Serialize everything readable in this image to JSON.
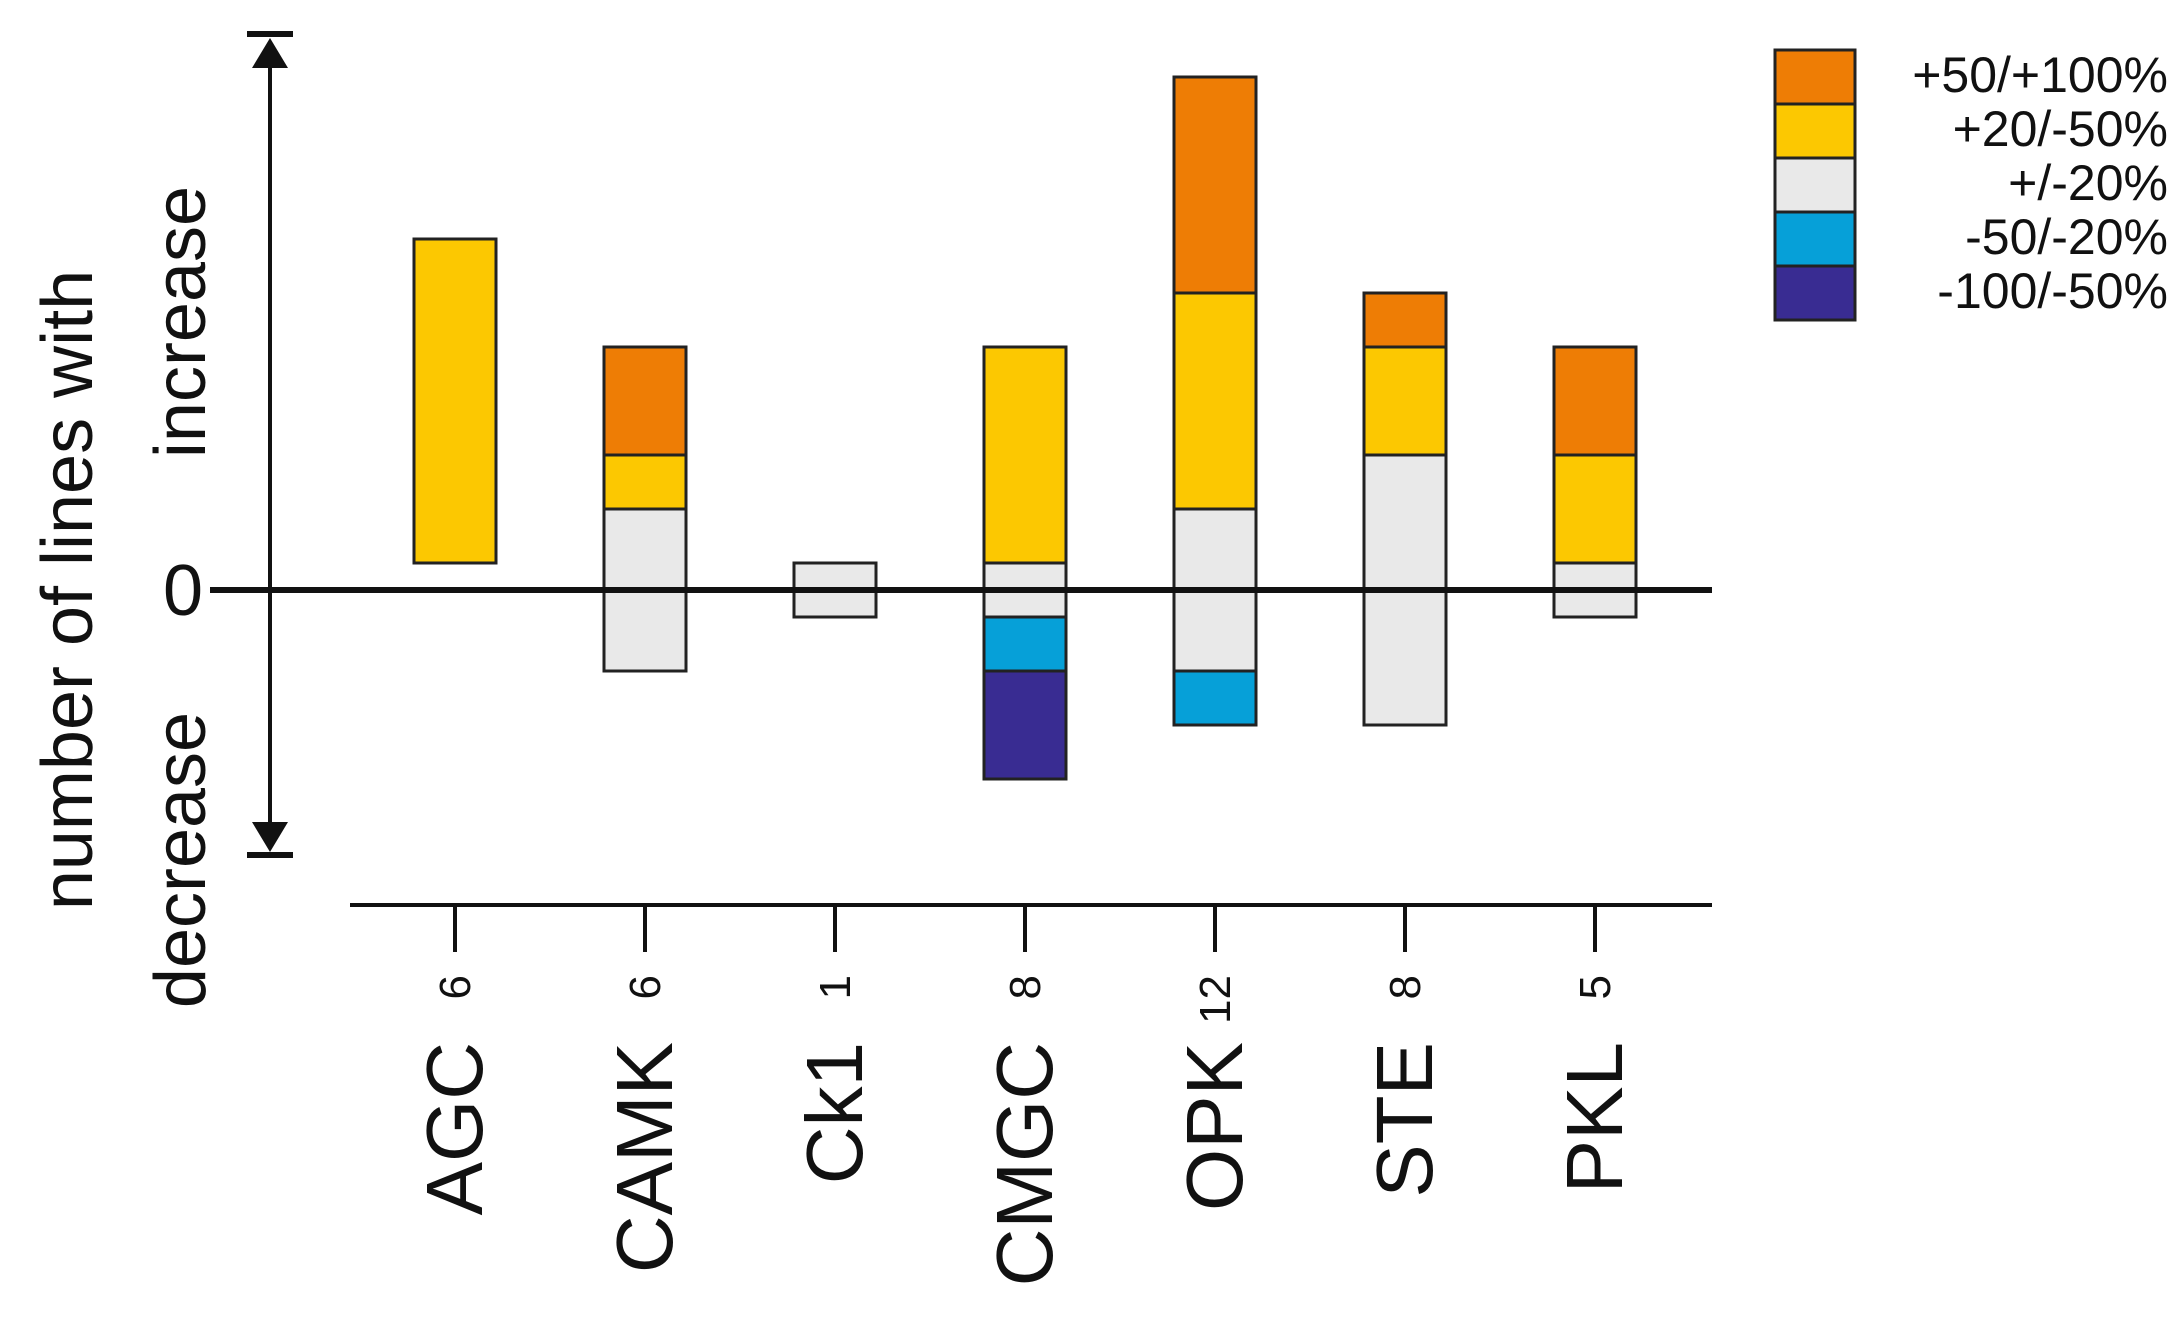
{
  "chart_data": {
    "type": "bar",
    "subtype": "diverging-stacked",
    "title": "",
    "ylabel": "number of lines with",
    "y_direction_labels": {
      "up": "increase",
      "down": "decrease"
    },
    "zero_label": "0",
    "categories": [
      {
        "name": "AGC",
        "count": "6"
      },
      {
        "name": "CAMK",
        "count": "6"
      },
      {
        "name": "Ck1",
        "count": "1"
      },
      {
        "name": "CMGC",
        "count": "8"
      },
      {
        "name": "OPK",
        "count": "12"
      },
      {
        "name": "STE",
        "count": "8"
      },
      {
        "name": "PKL",
        "count": "5"
      }
    ],
    "legend": [
      {
        "key": "inc_strong",
        "label": "+50/+100%",
        "color": "#EE7D05"
      },
      {
        "key": "inc_mod",
        "label": "+20/-50%",
        "color": "#FCC801"
      },
      {
        "key": "neutral",
        "label": "+/-20%",
        "color": "#E9E9E9"
      },
      {
        "key": "dec_mod",
        "label": "-50/-20%",
        "color": "#06A0D8"
      },
      {
        "key": "dec_strong",
        "label": "-100/-50%",
        "color": "#392C92"
      }
    ],
    "ylim": [
      -5,
      10
    ],
    "segments": [
      {
        "category": "AGC",
        "key": "inc_mod",
        "from": 0.5,
        "to": 6.5
      },
      {
        "category": "CAMK",
        "key": "neutral",
        "from": -1.5,
        "to": 1.5
      },
      {
        "category": "CAMK",
        "key": "inc_mod",
        "from": 1.5,
        "to": 2.5
      },
      {
        "category": "CAMK",
        "key": "inc_strong",
        "from": 2.5,
        "to": 4.5
      },
      {
        "category": "Ck1",
        "key": "neutral",
        "from": -0.5,
        "to": 0.5
      },
      {
        "category": "CMGC",
        "key": "dec_strong",
        "from": -3.5,
        "to": -1.5
      },
      {
        "category": "CMGC",
        "key": "dec_mod",
        "from": -1.5,
        "to": -0.5
      },
      {
        "category": "CMGC",
        "key": "neutral",
        "from": -0.5,
        "to": 0.5
      },
      {
        "category": "CMGC",
        "key": "inc_mod",
        "from": 0.5,
        "to": 4.5
      },
      {
        "category": "OPK",
        "key": "dec_mod",
        "from": -2.5,
        "to": -1.5
      },
      {
        "category": "OPK",
        "key": "neutral",
        "from": -1.5,
        "to": 1.5
      },
      {
        "category": "OPK",
        "key": "inc_mod",
        "from": 1.5,
        "to": 5.5
      },
      {
        "category": "OPK",
        "key": "inc_strong",
        "from": 5.5,
        "to": 9.5
      },
      {
        "category": "STE",
        "key": "neutral",
        "from": -2.5,
        "to": 2.5
      },
      {
        "category": "STE",
        "key": "inc_mod",
        "from": 2.5,
        "to": 4.5
      },
      {
        "category": "STE",
        "key": "inc_strong",
        "from": 4.5,
        "to": 5.5
      },
      {
        "category": "PKL",
        "key": "neutral",
        "from": -0.5,
        "to": 0.5
      },
      {
        "category": "PKL",
        "key": "inc_mod",
        "from": 0.5,
        "to": 2.5
      },
      {
        "category": "PKL",
        "key": "inc_strong",
        "from": 2.5,
        "to": 4.5
      }
    ],
    "grid": false,
    "legend_position": "top-right"
  }
}
